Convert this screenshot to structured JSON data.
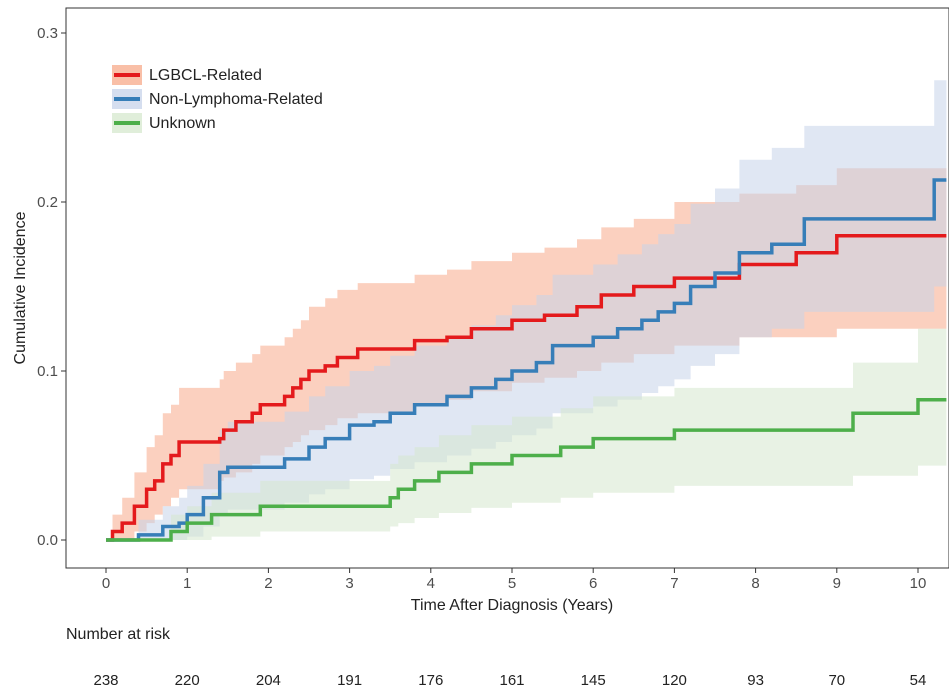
{
  "chart_data": {
    "type": "line",
    "title": "",
    "xlabel": "Time After Diagnosis (Years)",
    "ylabel": "Cumulative Incidence",
    "xlim": [
      -0.5,
      10.35
    ],
    "ylim": [
      -0.018,
      0.32
    ],
    "x_ticks": [
      0,
      1,
      2,
      3,
      4,
      5,
      6,
      7,
      8,
      9,
      10
    ],
    "y_ticks": [
      0.0,
      0.1,
      0.2,
      0.3
    ],
    "y_tick_labels": [
      "0.0",
      "0.1",
      "0.2",
      "0.3"
    ],
    "grid": false,
    "legend_position": "top-left",
    "series": [
      {
        "name": "LGBCL-Related",
        "color": "#e41a1c",
        "band_color": "#f7a98a",
        "x": [
          0,
          0.08,
          0.2,
          0.35,
          0.5,
          0.6,
          0.7,
          0.8,
          0.9,
          1.4,
          1.45,
          1.6,
          1.8,
          1.9,
          2.2,
          2.3,
          2.4,
          2.5,
          2.7,
          2.85,
          3.1,
          3.2,
          3.5,
          3.8,
          4.2,
          4.5,
          5.0,
          5.4,
          5.8,
          6.1,
          6.5,
          7.0,
          7.6,
          7.8,
          8.5,
          9.0,
          10.35
        ],
        "y": [
          0,
          0.005,
          0.01,
          0.02,
          0.03,
          0.035,
          0.045,
          0.05,
          0.058,
          0.06,
          0.065,
          0.07,
          0.075,
          0.08,
          0.085,
          0.09,
          0.095,
          0.1,
          0.103,
          0.108,
          0.113,
          0.113,
          0.113,
          0.118,
          0.12,
          0.125,
          0.13,
          0.133,
          0.138,
          0.145,
          0.15,
          0.155,
          0.155,
          0.163,
          0.17,
          0.18,
          0.18
        ],
        "lower": [
          0,
          0,
          0,
          0.005,
          0.01,
          0.015,
          0.02,
          0.025,
          0.03,
          0.035,
          0.037,
          0.04,
          0.045,
          0.05,
          0.055,
          0.058,
          0.062,
          0.065,
          0.068,
          0.072,
          0.075,
          0.075,
          0.075,
          0.08,
          0.083,
          0.088,
          0.093,
          0.096,
          0.1,
          0.105,
          0.11,
          0.115,
          0.115,
          0.12,
          0.12,
          0.125,
          0.128
        ],
        "upper": [
          0,
          0.015,
          0.025,
          0.04,
          0.055,
          0.062,
          0.075,
          0.08,
          0.09,
          0.095,
          0.1,
          0.105,
          0.11,
          0.115,
          0.12,
          0.125,
          0.13,
          0.138,
          0.143,
          0.148,
          0.152,
          0.152,
          0.152,
          0.157,
          0.16,
          0.165,
          0.17,
          0.173,
          0.178,
          0.185,
          0.19,
          0.2,
          0.2,
          0.205,
          0.21,
          0.22,
          0.225
        ]
      },
      {
        "name": "Non-Lymphoma-Related",
        "color": "#377eb8",
        "band_color": "#c7d3ea",
        "x": [
          0,
          0.4,
          0.7,
          0.9,
          1.0,
          1.2,
          1.4,
          1.5,
          1.9,
          2.2,
          2.5,
          2.7,
          3.0,
          3.3,
          3.5,
          3.8,
          4.2,
          4.5,
          4.8,
          5.0,
          5.3,
          5.5,
          6.0,
          6.3,
          6.6,
          6.8,
          7.0,
          7.2,
          7.5,
          7.8,
          8.2,
          8.6,
          9.0,
          10.2,
          10.35
        ],
        "y": [
          0,
          0.003,
          0.008,
          0.01,
          0.015,
          0.025,
          0.04,
          0.043,
          0.043,
          0.048,
          0.055,
          0.06,
          0.068,
          0.07,
          0.075,
          0.08,
          0.085,
          0.09,
          0.095,
          0.1,
          0.105,
          0.115,
          0.12,
          0.125,
          0.13,
          0.135,
          0.14,
          0.15,
          0.158,
          0.17,
          0.175,
          0.19,
          0.19,
          0.213,
          0.213
        ],
        "lower": [
          0,
          0,
          0,
          0,
          0.002,
          0.008,
          0.015,
          0.018,
          0.018,
          0.022,
          0.027,
          0.03,
          0.036,
          0.038,
          0.042,
          0.046,
          0.05,
          0.054,
          0.058,
          0.062,
          0.066,
          0.075,
          0.079,
          0.083,
          0.087,
          0.091,
          0.095,
          0.103,
          0.11,
          0.12,
          0.125,
          0.135,
          0.135,
          0.15,
          0.15
        ],
        "upper": [
          0,
          0.012,
          0.02,
          0.025,
          0.032,
          0.045,
          0.065,
          0.07,
          0.07,
          0.076,
          0.085,
          0.091,
          0.1,
          0.103,
          0.109,
          0.115,
          0.121,
          0.127,
          0.133,
          0.139,
          0.145,
          0.157,
          0.163,
          0.169,
          0.175,
          0.181,
          0.187,
          0.199,
          0.208,
          0.225,
          0.232,
          0.245,
          0.245,
          0.272,
          0.275
        ]
      },
      {
        "name": "Unknown",
        "color": "#4daf4a",
        "band_color": "#d6e8cd",
        "x": [
          0,
          0.8,
          1.0,
          1.3,
          1.9,
          3.5,
          3.6,
          3.8,
          4.1,
          4.5,
          5.0,
          5.6,
          6.0,
          7.0,
          8.5,
          9.2,
          10.0,
          10.35
        ],
        "y": [
          0,
          0.005,
          0.01,
          0.015,
          0.02,
          0.025,
          0.03,
          0.035,
          0.04,
          0.045,
          0.05,
          0.055,
          0.06,
          0.065,
          0.065,
          0.075,
          0.083,
          0.083
        ],
        "lower": [
          0,
          0,
          0,
          0.002,
          0.005,
          0.008,
          0.01,
          0.013,
          0.016,
          0.019,
          0.022,
          0.025,
          0.028,
          0.032,
          0.032,
          0.038,
          0.044,
          0.044
        ],
        "upper": [
          0,
          0.015,
          0.02,
          0.028,
          0.035,
          0.045,
          0.05,
          0.055,
          0.062,
          0.068,
          0.073,
          0.078,
          0.085,
          0.09,
          0.09,
          0.105,
          0.125,
          0.125
        ]
      }
    ],
    "risk_table": {
      "title": "Number at risk",
      "x": [
        0,
        1,
        2,
        3,
        4,
        5,
        6,
        7,
        8,
        9,
        10
      ],
      "values": [
        "238",
        "220",
        "204",
        "191",
        "176",
        "161",
        "145",
        "120",
        "93",
        "70",
        "54"
      ]
    }
  }
}
